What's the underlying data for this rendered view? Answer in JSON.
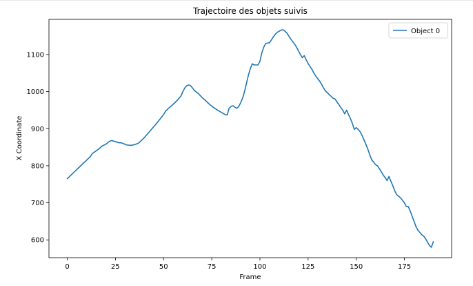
{
  "chart_data": {
    "type": "line",
    "title": "Trajectoire des objets suivis",
    "xlabel": "Frame",
    "ylabel": "X Coordinate",
    "xlim": [
      -9.5,
      199.5
    ],
    "ylim": [
      552,
      1195
    ],
    "xticks": [
      0,
      25,
      50,
      75,
      100,
      125,
      150,
      175
    ],
    "yticks": [
      600,
      700,
      800,
      900,
      1000,
      1100
    ],
    "grid": false,
    "legend_position": "top-right",
    "series": [
      {
        "name": "Object 0",
        "color": "#1f77b4",
        "points": [
          [
            0,
            765
          ],
          [
            2,
            775
          ],
          [
            4,
            785
          ],
          [
            6,
            795
          ],
          [
            8,
            805
          ],
          [
            10,
            815
          ],
          [
            12,
            825
          ],
          [
            13,
            833
          ],
          [
            15,
            840
          ],
          [
            17,
            848
          ],
          [
            18,
            853
          ],
          [
            20,
            858
          ],
          [
            21,
            862
          ],
          [
            22,
            866
          ],
          [
            23,
            868
          ],
          [
            25,
            865
          ],
          [
            27,
            862
          ],
          [
            28,
            862
          ],
          [
            30,
            858
          ],
          [
            31,
            856
          ],
          [
            33,
            855
          ],
          [
            35,
            857
          ],
          [
            37,
            861
          ],
          [
            38,
            866
          ],
          [
            40,
            876
          ],
          [
            42,
            888
          ],
          [
            44,
            900
          ],
          [
            46,
            912
          ],
          [
            48,
            925
          ],
          [
            50,
            938
          ],
          [
            51,
            947
          ],
          [
            53,
            957
          ],
          [
            55,
            966
          ],
          [
            57,
            976
          ],
          [
            59,
            988
          ],
          [
            60,
            1000
          ],
          [
            61,
            1010
          ],
          [
            62,
            1016
          ],
          [
            63,
            1018
          ],
          [
            64,
            1016
          ],
          [
            65,
            1010
          ],
          [
            66,
            1003
          ],
          [
            68,
            995
          ],
          [
            70,
            984
          ],
          [
            72,
            975
          ],
          [
            74,
            965
          ],
          [
            76,
            957
          ],
          [
            78,
            950
          ],
          [
            80,
            944
          ],
          [
            82,
            938
          ],
          [
            83,
            937
          ],
          [
            84,
            955
          ],
          [
            85,
            960
          ],
          [
            86,
            962
          ],
          [
            87,
            958
          ],
          [
            88,
            955
          ],
          [
            89,
            960
          ],
          [
            90,
            970
          ],
          [
            91,
            982
          ],
          [
            92,
            1000
          ],
          [
            93,
            1022
          ],
          [
            94,
            1044
          ],
          [
            95,
            1062
          ],
          [
            96,
            1075
          ],
          [
            97,
            1072
          ],
          [
            99,
            1072
          ],
          [
            100,
            1082
          ],
          [
            101,
            1105
          ],
          [
            102,
            1120
          ],
          [
            103,
            1130
          ],
          [
            104,
            1131
          ],
          [
            105,
            1132
          ],
          [
            106,
            1140
          ],
          [
            107,
            1148
          ],
          [
            108,
            1155
          ],
          [
            109,
            1160
          ],
          [
            110,
            1163
          ],
          [
            111,
            1166
          ],
          [
            112,
            1167
          ],
          [
            113,
            1163
          ],
          [
            114,
            1158
          ],
          [
            115,
            1150
          ],
          [
            116,
            1142
          ],
          [
            117,
            1135
          ],
          [
            118,
            1128
          ],
          [
            119,
            1120
          ],
          [
            120,
            1110
          ],
          [
            121,
            1100
          ],
          [
            122,
            1092
          ],
          [
            123,
            1097
          ],
          [
            124,
            1086
          ],
          [
            125,
            1076
          ],
          [
            126,
            1068
          ],
          [
            127,
            1060
          ],
          [
            128,
            1050
          ],
          [
            129,
            1042
          ],
          [
            130,
            1035
          ],
          [
            131,
            1028
          ],
          [
            132,
            1020
          ],
          [
            133,
            1010
          ],
          [
            134,
            1002
          ],
          [
            135,
            997
          ],
          [
            136,
            992
          ],
          [
            137,
            987
          ],
          [
            138,
            982
          ],
          [
            139,
            980
          ],
          [
            140,
            972
          ],
          [
            141,
            965
          ],
          [
            142,
            957
          ],
          [
            143,
            950
          ],
          [
            144,
            940
          ],
          [
            145,
            950
          ],
          [
            146,
            938
          ],
          [
            147,
            927
          ],
          [
            148,
            914
          ],
          [
            149,
            898
          ],
          [
            150,
            903
          ],
          [
            151,
            898
          ],
          [
            152,
            892
          ],
          [
            153,
            882
          ],
          [
            154,
            870
          ],
          [
            155,
            858
          ],
          [
            156,
            845
          ],
          [
            157,
            830
          ],
          [
            158,
            816
          ],
          [
            159,
            810
          ],
          [
            160,
            803
          ],
          [
            161,
            800
          ],
          [
            162,
            792
          ],
          [
            163,
            784
          ],
          [
            164,
            775
          ],
          [
            165,
            768
          ],
          [
            166,
            760
          ],
          [
            167,
            771
          ],
          [
            168,
            758
          ],
          [
            169,
            746
          ],
          [
            170,
            732
          ],
          [
            171,
            722
          ],
          [
            172,
            718
          ],
          [
            173,
            713
          ],
          [
            174,
            707
          ],
          [
            175,
            700
          ],
          [
            176,
            690
          ],
          [
            177,
            690
          ],
          [
            178,
            678
          ],
          [
            179,
            664
          ],
          [
            180,
            650
          ],
          [
            181,
            636
          ],
          [
            182,
            626
          ],
          [
            183,
            620
          ],
          [
            184,
            614
          ],
          [
            185,
            610
          ],
          [
            186,
            603
          ],
          [
            187,
            594
          ],
          [
            188,
            585
          ],
          [
            189,
            580
          ],
          [
            190,
            595
          ]
        ]
      }
    ]
  }
}
